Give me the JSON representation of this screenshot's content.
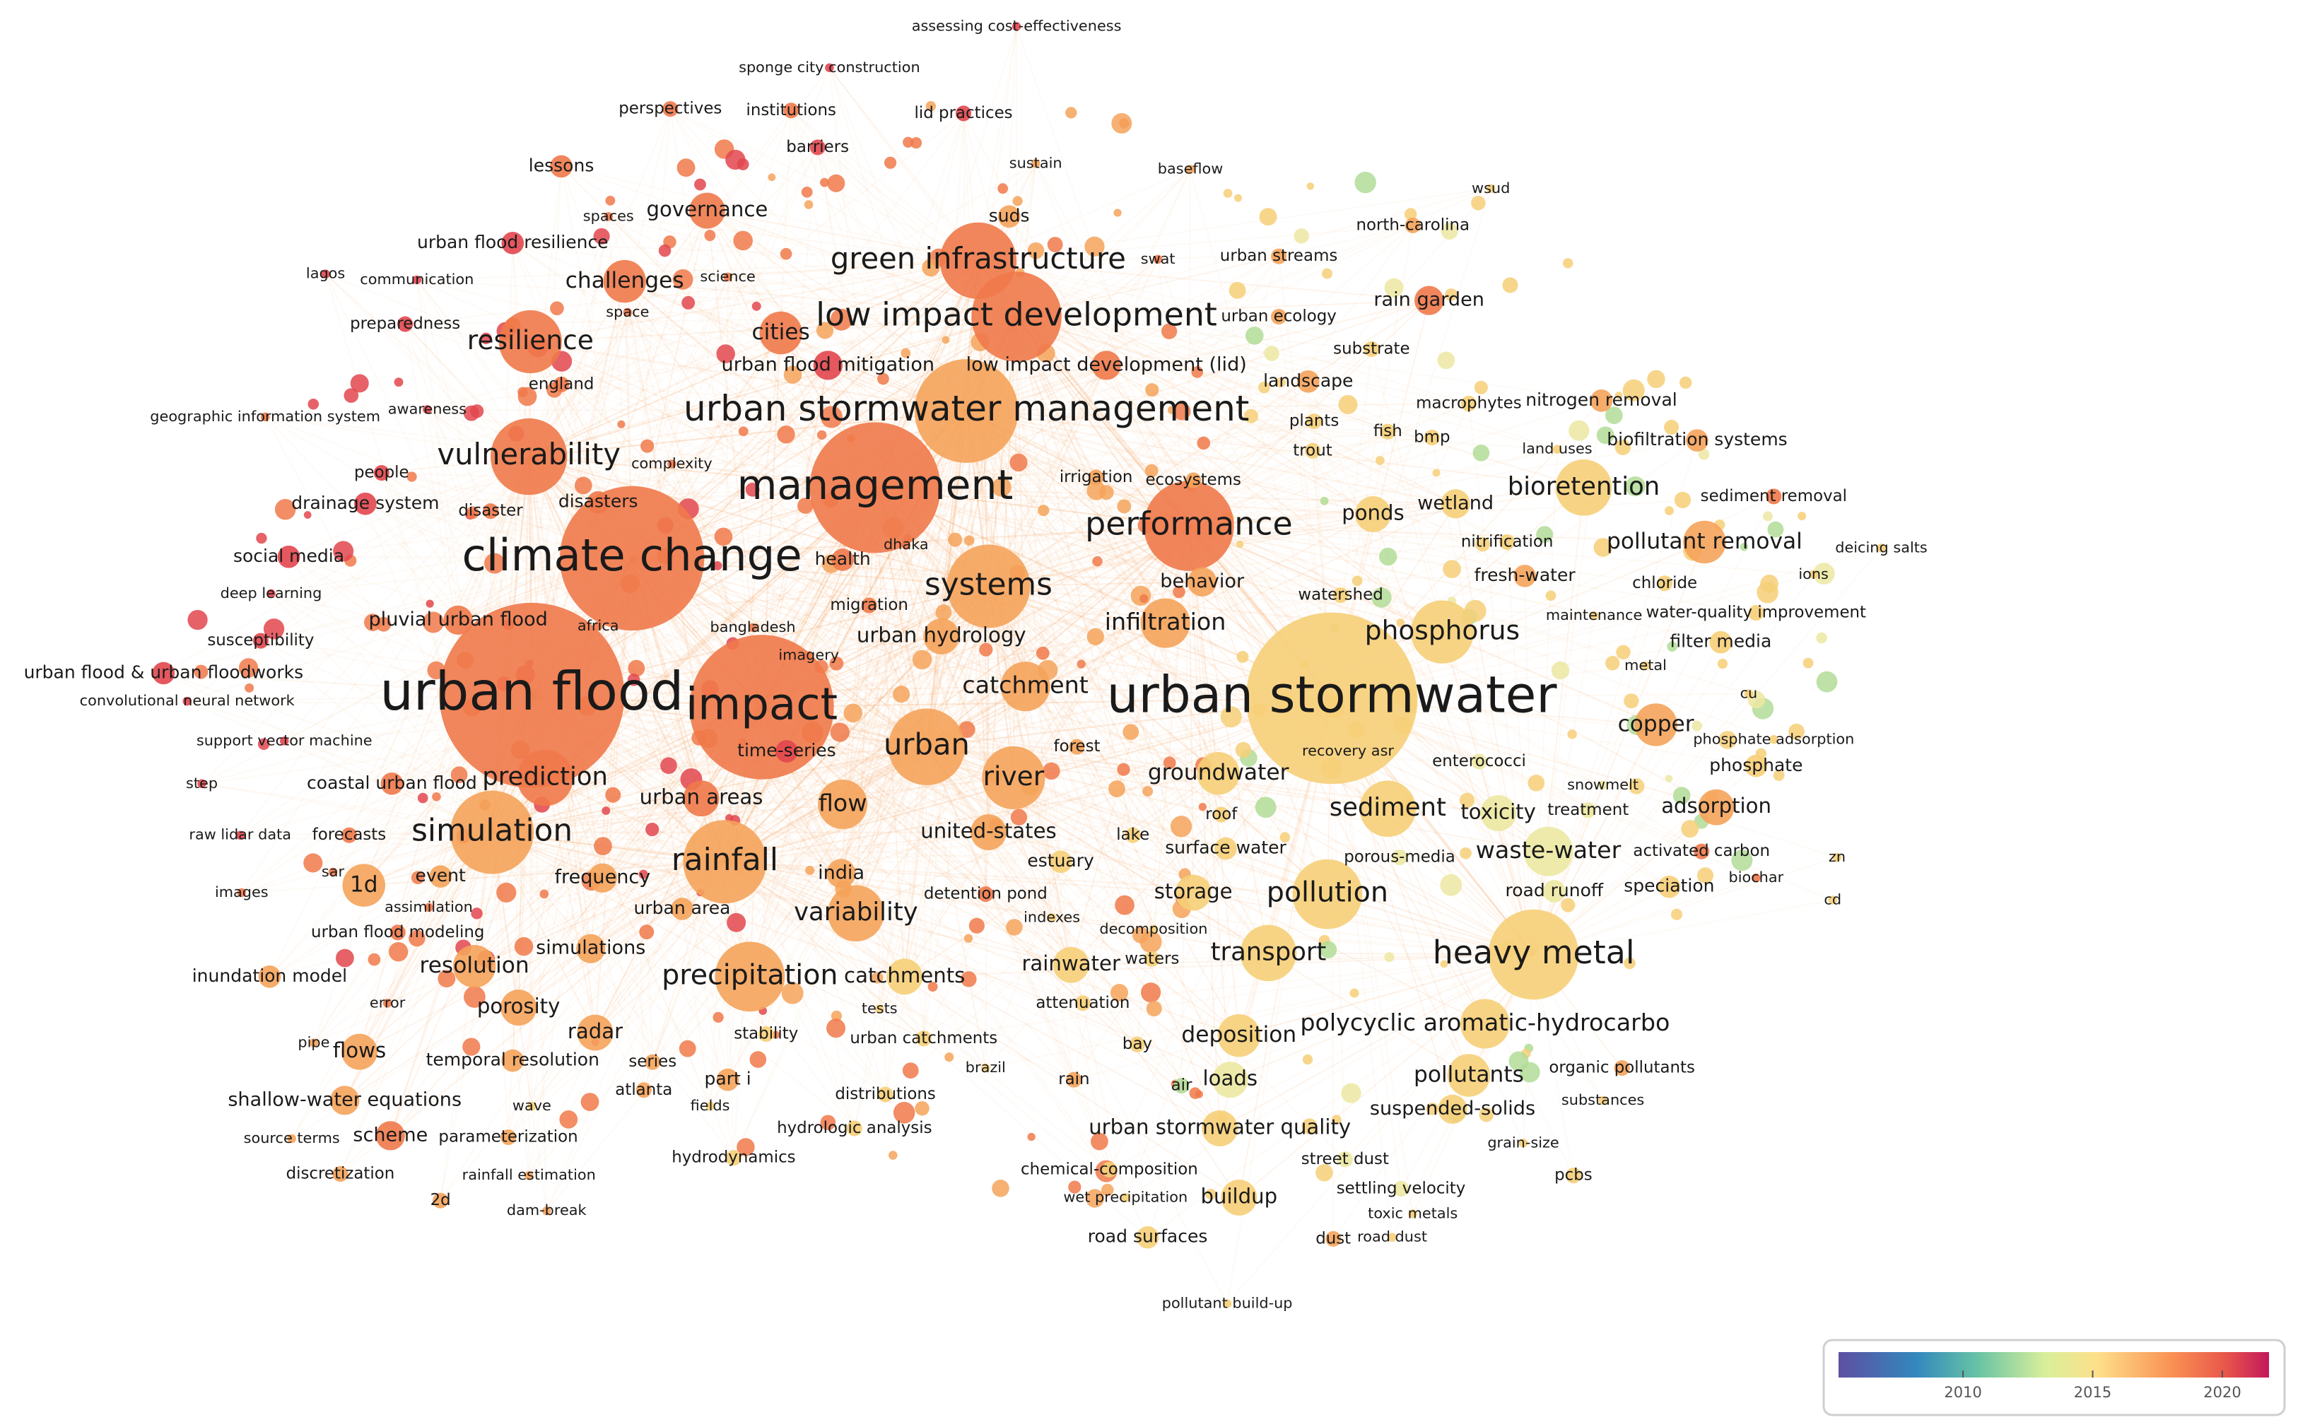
{
  "nodes": [
    {
      "label": "assessing cost-effectiveness"
    },
    {
      "label": "sponge city construction"
    },
    {
      "label": "perspectives"
    },
    {
      "label": "institutions"
    },
    {
      "label": "lid practices"
    },
    {
      "label": "barriers"
    },
    {
      "label": "lessons"
    },
    {
      "label": "sustain"
    },
    {
      "label": "baseflow"
    },
    {
      "label": "wsud"
    },
    {
      "label": "governance"
    },
    {
      "label": "spaces"
    },
    {
      "label": "suds"
    },
    {
      "label": "urban flood resilience"
    },
    {
      "label": "north-carolina"
    },
    {
      "label": "green infrastructure"
    },
    {
      "label": "swat"
    },
    {
      "label": "urban streams"
    },
    {
      "label": "lagos"
    },
    {
      "label": "communication"
    },
    {
      "label": "challenges"
    },
    {
      "label": "science"
    },
    {
      "label": "rain garden"
    },
    {
      "label": "space"
    },
    {
      "label": "low impact development"
    },
    {
      "label": "urban ecology"
    },
    {
      "label": "preparedness"
    },
    {
      "label": "resilience"
    },
    {
      "label": "cities"
    },
    {
      "label": "substrate"
    },
    {
      "label": "urban flood mitigation"
    },
    {
      "label": "low impact development (lid)"
    },
    {
      "label": "england"
    },
    {
      "label": "landscape"
    },
    {
      "label": "awareness"
    },
    {
      "label": "urban stormwater management"
    },
    {
      "label": "geographic information system"
    },
    {
      "label": "macrophytes"
    },
    {
      "label": "nitrogen removal"
    },
    {
      "label": "plants"
    },
    {
      "label": "fish"
    },
    {
      "label": "bmp"
    },
    {
      "label": "land uses"
    },
    {
      "label": "biofiltration systems"
    },
    {
      "label": "trout"
    },
    {
      "label": "vulnerability"
    },
    {
      "label": "complexity"
    },
    {
      "label": "people"
    },
    {
      "label": "management"
    },
    {
      "label": "irrigation"
    },
    {
      "label": "ecosystems"
    },
    {
      "label": "bioretention"
    },
    {
      "label": "sediment removal"
    },
    {
      "label": "drainage system"
    },
    {
      "label": "disaster"
    },
    {
      "label": "disasters"
    },
    {
      "label": "ponds"
    },
    {
      "label": "wetland"
    },
    {
      "label": "performance"
    },
    {
      "label": "nitrification"
    },
    {
      "label": "pollutant removal"
    },
    {
      "label": "deicing salts"
    },
    {
      "label": "social media"
    },
    {
      "label": "climate change"
    },
    {
      "label": "dhaka"
    },
    {
      "label": "health"
    },
    {
      "label": "fresh-water"
    },
    {
      "label": "ions"
    },
    {
      "label": "chloride"
    },
    {
      "label": "behavior"
    },
    {
      "label": "deep learning"
    },
    {
      "label": "systems"
    },
    {
      "label": "watershed"
    },
    {
      "label": "maintenance"
    },
    {
      "label": "water-quality improvement"
    },
    {
      "label": "migration"
    },
    {
      "label": "infiltration"
    },
    {
      "label": "phosphorus"
    },
    {
      "label": "pluvial urban flood"
    },
    {
      "label": "africa"
    },
    {
      "label": "bangladesh"
    },
    {
      "label": "imagery"
    },
    {
      "label": "urban hydrology"
    },
    {
      "label": "filter media"
    },
    {
      "label": "susceptibility"
    },
    {
      "label": "metal"
    },
    {
      "label": "urban flood & urban floodworks"
    },
    {
      "label": "urban flood"
    },
    {
      "label": "impact"
    },
    {
      "label": "catchment"
    },
    {
      "label": "urban stormwater"
    },
    {
      "label": "cu"
    },
    {
      "label": "convolutional neural network"
    },
    {
      "label": "copper"
    },
    {
      "label": "support vector machine"
    },
    {
      "label": "phosphate adsorption"
    },
    {
      "label": "time-series"
    },
    {
      "label": "urban"
    },
    {
      "label": "forest"
    },
    {
      "label": "recovery asr"
    },
    {
      "label": "enterococci"
    },
    {
      "label": "phosphate"
    },
    {
      "label": "groundwater"
    },
    {
      "label": "step"
    },
    {
      "label": "coastal urban flood"
    },
    {
      "label": "prediction"
    },
    {
      "label": "river"
    },
    {
      "label": "snowmelt"
    },
    {
      "label": "urban areas"
    },
    {
      "label": "flow"
    },
    {
      "label": "sediment"
    },
    {
      "label": "toxicity"
    },
    {
      "label": "treatment"
    },
    {
      "label": "adsorption"
    },
    {
      "label": "roof"
    },
    {
      "label": "united-states"
    },
    {
      "label": "simulation"
    },
    {
      "label": "raw lidar data"
    },
    {
      "label": "forecasts"
    },
    {
      "label": "lake"
    },
    {
      "label": "surface water"
    },
    {
      "label": "waste-water"
    },
    {
      "label": "activated carbon"
    },
    {
      "label": "rainfall"
    },
    {
      "label": "estuary"
    },
    {
      "label": "porous-media"
    },
    {
      "label": "zn"
    },
    {
      "label": "sar"
    },
    {
      "label": "india"
    },
    {
      "label": "event"
    },
    {
      "label": "frequency"
    },
    {
      "label": "biochar"
    },
    {
      "label": "1d"
    },
    {
      "label": "road runoff"
    },
    {
      "label": "speciation"
    },
    {
      "label": "cd"
    },
    {
      "label": "images"
    },
    {
      "label": "pollution"
    },
    {
      "label": "storage"
    },
    {
      "label": "detention pond"
    },
    {
      "label": "assimilation"
    },
    {
      "label": "urban area"
    },
    {
      "label": "variability"
    },
    {
      "label": "indexes"
    },
    {
      "label": "urban flood modeling"
    },
    {
      "label": "decomposition"
    },
    {
      "label": "simulations"
    },
    {
      "label": "transport"
    },
    {
      "label": "heavy metal"
    },
    {
      "label": "resolution"
    },
    {
      "label": "rainwater"
    },
    {
      "label": "waters"
    },
    {
      "label": "precipitation"
    },
    {
      "label": "catchments"
    },
    {
      "label": "inundation model"
    },
    {
      "label": "attenuation"
    },
    {
      "label": "tests"
    },
    {
      "label": "porosity"
    },
    {
      "label": "error"
    },
    {
      "label": "polycyclic aromatic-hydrocarbo"
    },
    {
      "label": "radar"
    },
    {
      "label": "stability"
    },
    {
      "label": "urban catchments"
    },
    {
      "label": "deposition"
    },
    {
      "label": "bay"
    },
    {
      "label": "pipe"
    },
    {
      "label": "flows"
    },
    {
      "label": "series"
    },
    {
      "label": "temporal resolution"
    },
    {
      "label": "organic pollutants"
    },
    {
      "label": "brazil"
    },
    {
      "label": "pollutants"
    },
    {
      "label": "part i"
    },
    {
      "label": "rain"
    },
    {
      "label": "air"
    },
    {
      "label": "loads"
    },
    {
      "label": "atlanta"
    },
    {
      "label": "shallow-water equations"
    },
    {
      "label": "distributions"
    },
    {
      "label": "wave"
    },
    {
      "label": "fields"
    },
    {
      "label": "substances"
    },
    {
      "label": "suspended-solids"
    },
    {
      "label": "urban stormwater quality"
    },
    {
      "label": "hydrologic analysis"
    },
    {
      "label": "scheme"
    },
    {
      "label": "parameterization"
    },
    {
      "label": "source terms"
    },
    {
      "label": "grain-size"
    },
    {
      "label": "hydrodynamics"
    },
    {
      "label": "street dust"
    },
    {
      "label": "chemical-composition"
    },
    {
      "label": "discretization"
    },
    {
      "label": "rainfall estimation"
    },
    {
      "label": "pcbs"
    },
    {
      "label": "settling velocity"
    },
    {
      "label": "buildup"
    },
    {
      "label": "wet precipitation"
    },
    {
      "label": "2d"
    },
    {
      "label": "toxic metals"
    },
    {
      "label": "dam-break"
    },
    {
      "label": "road surfaces"
    },
    {
      "label": "dust"
    },
    {
      "label": "road dust"
    },
    {
      "label": "pollutant build-up"
    }
  ],
  "legend": {
    "lim": [
      2005.2,
      2021.8
    ],
    "ticks": [
      2010,
      2015,
      2020
    ]
  }
}
